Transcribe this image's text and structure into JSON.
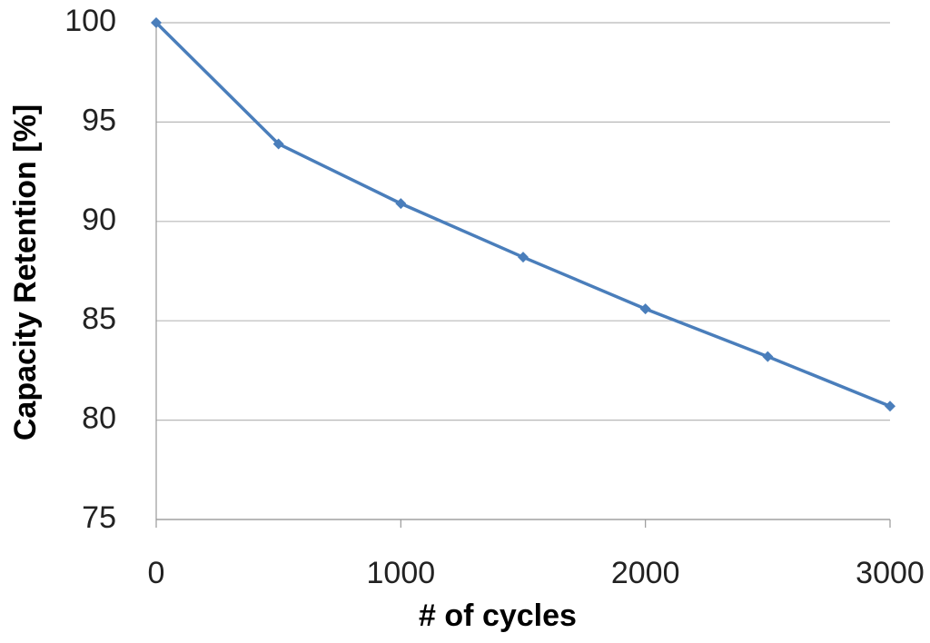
{
  "chart_data": {
    "type": "line",
    "x_label": "# of cycles",
    "y_label": "Capacity Retention [%]",
    "x": [
      0,
      500,
      1000,
      1500,
      2000,
      2500,
      3000
    ],
    "series": [
      {
        "name": "Capacity Retention",
        "color": "#4a7ebb",
        "values": [
          100,
          93.9,
          90.9,
          88.2,
          85.6,
          83.2,
          80.7
        ]
      }
    ],
    "xlim": [
      0,
      3000
    ],
    "xticks": [
      0,
      1000,
      2000,
      3000
    ],
    "ylim": [
      75,
      100
    ],
    "yticks": [
      75,
      80,
      85,
      90,
      95,
      100
    ],
    "grid": true
  }
}
